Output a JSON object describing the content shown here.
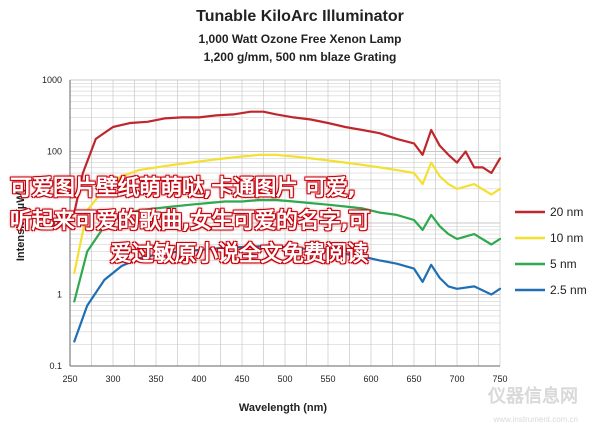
{
  "header": {
    "title": "Tunable KiloArc Illuminator",
    "subtitle1": "1,000 Watt Ozone Free Xenon Lamp",
    "subtitle2": "1,200 g/mm, 500 nm blaze Grating"
  },
  "overlay_text": {
    "line1": "可爱图片壁纸萌萌哒,卡通图片 可爱,",
    "line2": "听起来可爱的歌曲,女生可爱的名字,可",
    "line3": "爱过敏原小说全文免费阅读"
  },
  "watermark": {
    "text": "仪器信息网",
    "url": "www.instrument.com.cn"
  },
  "colors": {
    "series_20nm": "#c0272d",
    "series_10nm": "#f4e030",
    "series_5nm": "#2fa84f",
    "series_2_5nm": "#1f6fb2",
    "grid": "#c8c8c8",
    "axis": "#666666"
  },
  "chart_data": {
    "type": "line",
    "title": "Tunable KiloArc Illuminator",
    "xlabel": "Wavelength (nm)",
    "ylabel": "Intensity (µW)",
    "xlim": [
      250,
      750
    ],
    "ylim": [
      0.1,
      1000
    ],
    "yscale": "log",
    "grid": true,
    "legend_position": "right",
    "x_ticks": [
      "250",
      "300",
      "350",
      "400",
      "450",
      "500",
      "550",
      "600",
      "650",
      "700",
      "750"
    ],
    "y_ticks": [
      "0.1",
      "1",
      "10",
      "100",
      "1000"
    ],
    "series": [
      {
        "name": "20 nm",
        "color": "#c0272d",
        "x": [
          255,
          265,
          280,
          300,
          320,
          340,
          360,
          380,
          400,
          420,
          440,
          460,
          475,
          490,
          510,
          530,
          550,
          570,
          590,
          610,
          630,
          650,
          660,
          670,
          680,
          690,
          700,
          710,
          720,
          730,
          740,
          750
        ],
        "y": [
          14,
          50,
          150,
          220,
          250,
          260,
          290,
          300,
          300,
          320,
          330,
          360,
          360,
          330,
          300,
          280,
          250,
          220,
          200,
          180,
          150,
          130,
          90,
          200,
          120,
          90,
          70,
          100,
          60,
          60,
          50,
          80
        ]
      },
      {
        "name": "10 nm",
        "color": "#f4e030",
        "x": [
          255,
          270,
          290,
          310,
          330,
          350,
          370,
          390,
          410,
          430,
          450,
          470,
          490,
          510,
          530,
          550,
          570,
          590,
          610,
          630,
          650,
          660,
          670,
          680,
          690,
          700,
          720,
          740,
          750
        ],
        "y": [
          2,
          15,
          30,
          45,
          55,
          60,
          65,
          70,
          75,
          80,
          85,
          90,
          90,
          85,
          80,
          75,
          70,
          65,
          60,
          55,
          50,
          35,
          70,
          45,
          35,
          30,
          35,
          25,
          30
        ]
      },
      {
        "name": "5 nm",
        "color": "#2fa84f",
        "x": [
          255,
          270,
          290,
          310,
          330,
          350,
          370,
          390,
          410,
          430,
          450,
          470,
          490,
          510,
          530,
          550,
          570,
          590,
          610,
          630,
          650,
          660,
          670,
          680,
          690,
          700,
          720,
          740,
          750
        ],
        "y": [
          0.8,
          4,
          9,
          13,
          15,
          16,
          17,
          18,
          19,
          20,
          20,
          21,
          21,
          20,
          19,
          18,
          17,
          16,
          14,
          13,
          11,
          8,
          13,
          9,
          7,
          6,
          7,
          5,
          6
        ]
      },
      {
        "name": "2.5 nm",
        "color": "#1f6fb2",
        "x": [
          255,
          270,
          290,
          310,
          330,
          350,
          370,
          390,
          410,
          430,
          450,
          470,
          490,
          510,
          530,
          550,
          570,
          590,
          610,
          630,
          650,
          660,
          670,
          680,
          690,
          700,
          720,
          740,
          750
        ],
        "y": [
          0.22,
          0.7,
          1.6,
          2.5,
          3.2,
          3.6,
          3.9,
          4.1,
          4.3,
          4.5,
          4.6,
          4.7,
          4.7,
          4.5,
          4.3,
          4.0,
          3.7,
          3.4,
          3.0,
          2.7,
          2.3,
          1.5,
          2.6,
          1.7,
          1.3,
          1.2,
          1.3,
          1.0,
          1.2
        ]
      }
    ]
  }
}
